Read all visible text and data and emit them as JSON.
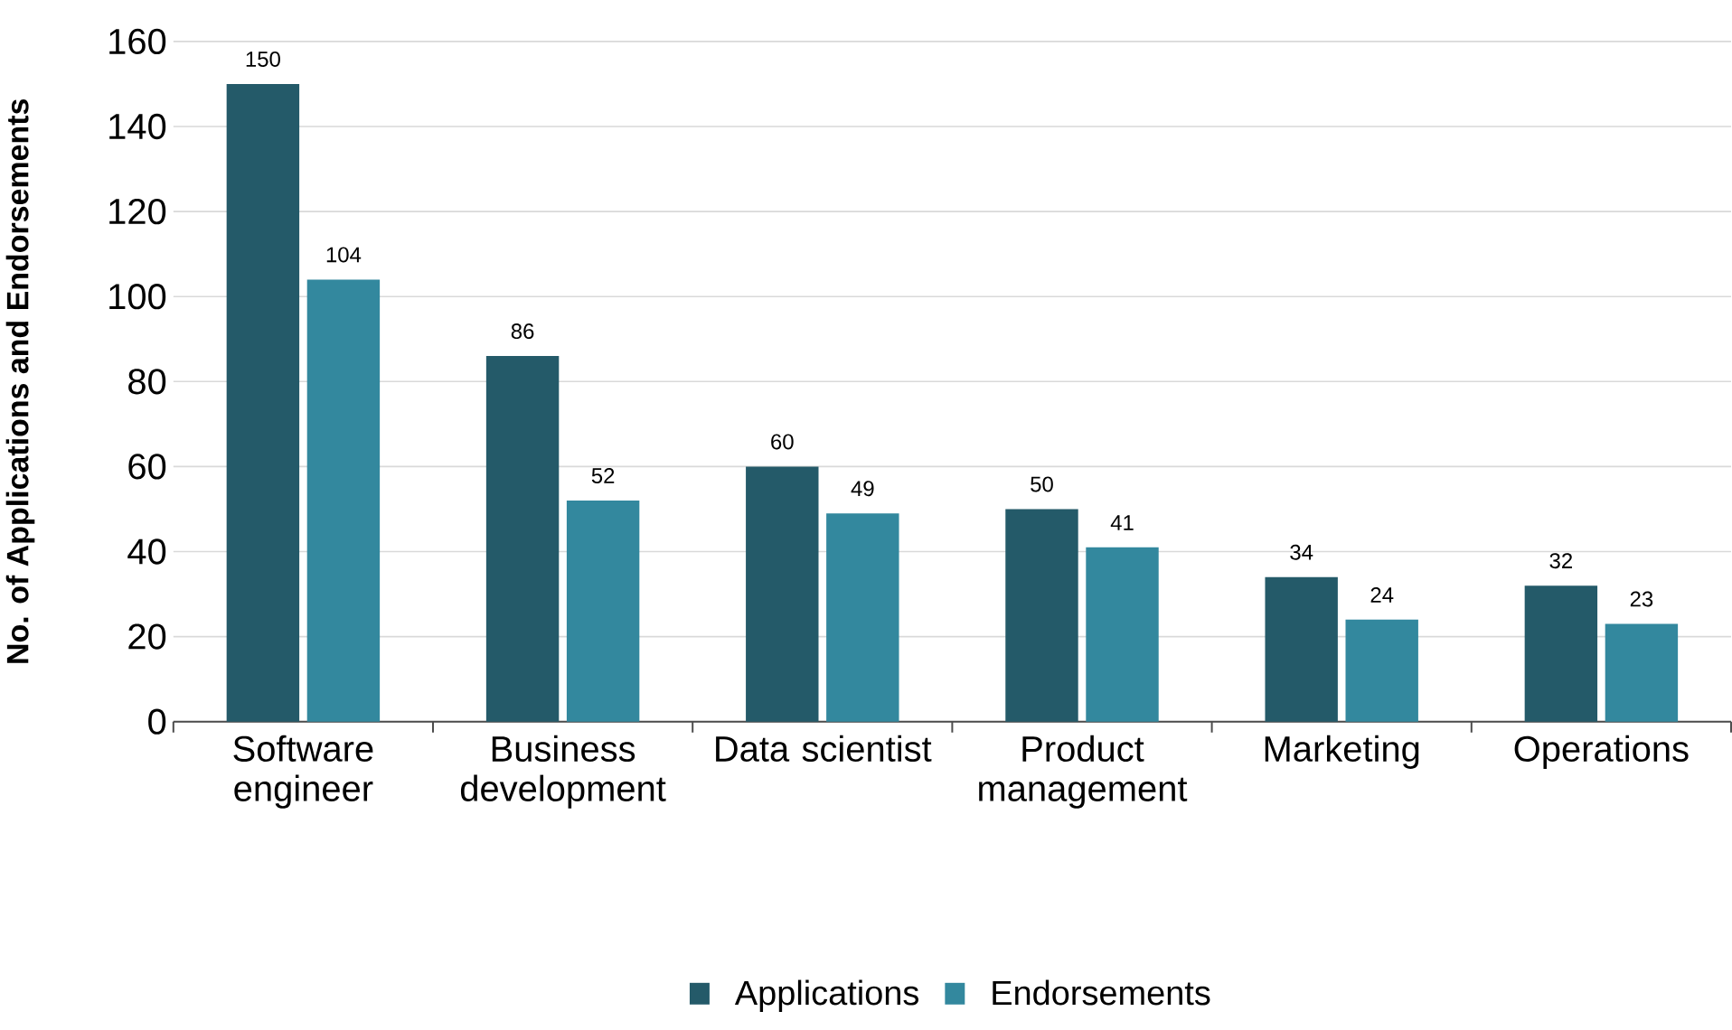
{
  "chart_data": {
    "type": "bar",
    "ylabel": "No. of Applications and Endorsements",
    "categories": [
      "Software engineer",
      "Business development",
      "Data scientist",
      "Product management",
      "Marketing",
      "Operations"
    ],
    "series": [
      {
        "name": "Applications",
        "color": "#245a69",
        "values": [
          150,
          86,
          60,
          50,
          34,
          32
        ]
      },
      {
        "name": "Endorsements",
        "color": "#33889e",
        "values": [
          104,
          52,
          49,
          41,
          24,
          23
        ]
      }
    ],
    "ylim": [
      0,
      160
    ],
    "yticks": [
      0,
      20,
      40,
      60,
      80,
      100,
      120,
      140,
      160
    ],
    "grid": "y",
    "legend": "bottom",
    "data_labels": true
  }
}
